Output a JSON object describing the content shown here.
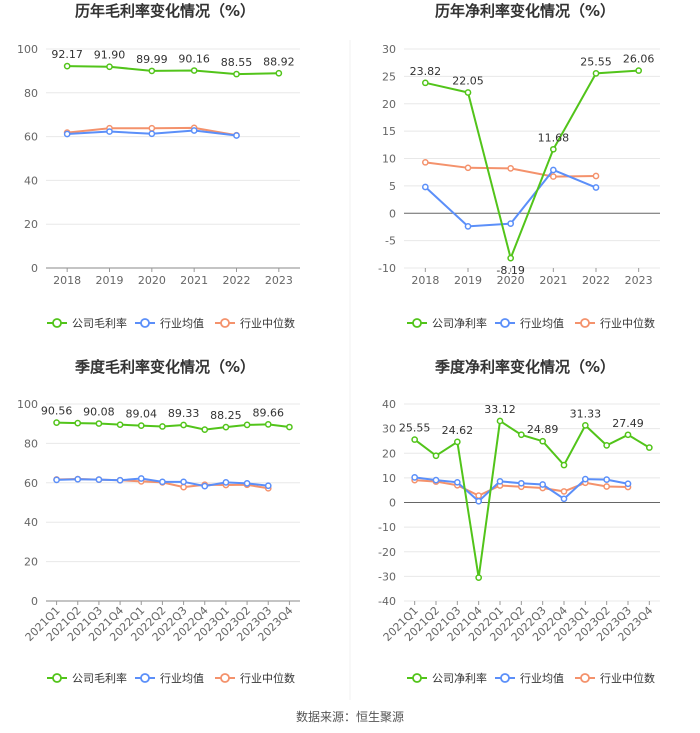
{
  "source": "数据来源：恒生聚源",
  "colors": {
    "company": "#52c41a",
    "avg": "#5b8ff9",
    "median": "#f4926c",
    "grid": "#e8e8e8",
    "axis": "#999999",
    "text": "#333333"
  },
  "chart_data": [
    {
      "type": "line",
      "title": "历年毛利率变化情况（%）",
      "categories": [
        "2018",
        "2019",
        "2020",
        "2021",
        "2022",
        "2023"
      ],
      "ylim": [
        0,
        100
      ],
      "yticks": [
        0,
        20,
        40,
        60,
        80,
        100
      ],
      "series": [
        {
          "name": "公司毛利率",
          "values": [
            92.17,
            91.9,
            89.99,
            90.16,
            88.55,
            88.92
          ],
          "labels": [
            "92.17",
            "91.90",
            "89.99",
            "90.16",
            "88.55",
            "88.92"
          ]
        },
        {
          "name": "行业均值",
          "values": [
            61.2,
            62.3,
            61.3,
            62.8,
            60.5,
            null
          ]
        },
        {
          "name": "行业中位数",
          "values": [
            61.8,
            63.8,
            63.8,
            64.0,
            60.6,
            null
          ]
        }
      ]
    },
    {
      "type": "line",
      "title": "历年净利率变化情况（%）",
      "categories": [
        "2018",
        "2019",
        "2020",
        "2021",
        "2022",
        "2023"
      ],
      "ylim": [
        -10,
        30
      ],
      "yticks": [
        -10,
        -5,
        0,
        5,
        10,
        15,
        20,
        25,
        30
      ],
      "series": [
        {
          "name": "公司净利率",
          "values": [
            23.82,
            22.05,
            -8.19,
            11.68,
            25.55,
            26.06
          ],
          "labels": [
            "23.82",
            "22.05",
            "-8.19",
            "11.68",
            "25.55",
            "26.06"
          ]
        },
        {
          "name": "行业均值",
          "values": [
            4.8,
            -2.4,
            -1.9,
            7.9,
            4.7,
            null
          ]
        },
        {
          "name": "行业中位数",
          "values": [
            9.3,
            8.3,
            8.2,
            6.7,
            6.8,
            null
          ]
        }
      ]
    },
    {
      "type": "line",
      "title": "季度毛利率变化情况（%）",
      "categories": [
        "2021Q1",
        "2021Q2",
        "2021Q3",
        "2021Q4",
        "2022Q1",
        "2022Q2",
        "2022Q3",
        "2022Q4",
        "2023Q1",
        "2023Q2",
        "2023Q3",
        "2023Q4"
      ],
      "ylim": [
        0,
        100
      ],
      "yticks": [
        0,
        20,
        40,
        60,
        80,
        100
      ],
      "series": [
        {
          "name": "公司毛利率",
          "values": [
            90.56,
            90.3,
            90.08,
            89.5,
            89.04,
            88.6,
            89.33,
            87.0,
            88.25,
            89.4,
            89.66,
            88.3
          ],
          "labels": [
            "90.56",
            "",
            "90.08",
            "",
            "89.04",
            "",
            "89.33",
            "",
            "88.25",
            "",
            "89.66",
            ""
          ]
        },
        {
          "name": "行业均值",
          "values": [
            61.5,
            61.8,
            61.6,
            61.3,
            62.2,
            60.5,
            60.5,
            58.3,
            60.2,
            59.7,
            58.5,
            null
          ]
        },
        {
          "name": "行业中位数",
          "values": [
            61.7,
            61.9,
            61.6,
            61.3,
            60.7,
            60.2,
            57.8,
            59.0,
            58.9,
            59.0,
            57.2,
            null
          ]
        }
      ]
    },
    {
      "type": "line",
      "title": "季度净利率变化情况（%）",
      "categories": [
        "2021Q1",
        "2021Q2",
        "2021Q3",
        "2021Q4",
        "2022Q1",
        "2022Q2",
        "2022Q3",
        "2022Q4",
        "2023Q1",
        "2023Q2",
        "2023Q3",
        "2023Q4"
      ],
      "ylim": [
        -40,
        40
      ],
      "yticks": [
        -40,
        -30,
        -20,
        -10,
        0,
        10,
        20,
        30,
        40
      ],
      "series": [
        {
          "name": "公司净利率",
          "values": [
            25.55,
            19.0,
            24.62,
            -30.5,
            33.12,
            27.5,
            24.89,
            15.2,
            31.33,
            23.2,
            27.49,
            22.3
          ],
          "labels": [
            "25.55",
            "",
            "24.62",
            "",
            "33.12",
            "",
            "24.89",
            "",
            "31.33",
            "",
            "27.49",
            ""
          ]
        },
        {
          "name": "行业均值",
          "values": [
            10.2,
            9.1,
            8.2,
            0.5,
            8.6,
            7.8,
            7.3,
            1.5,
            9.5,
            9.3,
            7.6,
            null
          ]
        },
        {
          "name": "行业中位数",
          "values": [
            9.1,
            8.5,
            7.0,
            2.8,
            6.9,
            6.4,
            5.9,
            4.5,
            8.0,
            6.5,
            6.3,
            null
          ]
        }
      ]
    }
  ]
}
